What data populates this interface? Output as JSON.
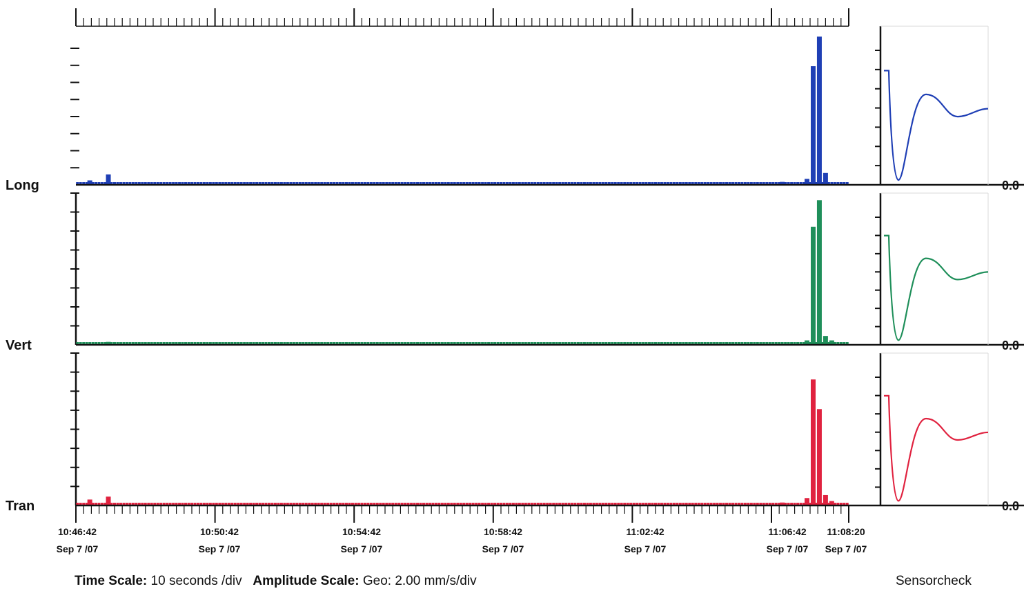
{
  "chart_data": {
    "type": "bar",
    "channels": [
      {
        "name": "Long",
        "color": "#1f3fb5",
        "zero_label": "0.0",
        "peaks": [
          {
            "t": 4,
            "v": 0.03
          },
          {
            "t": 10,
            "v": 0.07
          },
          {
            "t": 228,
            "v": 0.02
          },
          {
            "t": 236,
            "v": 0.04
          },
          {
            "t": 238,
            "v": 0.8
          },
          {
            "t": 240,
            "v": 1.0
          },
          {
            "t": 242,
            "v": 0.08
          }
        ]
      },
      {
        "name": "Vert",
        "color": "#1f8f5a",
        "zero_label": "0.0",
        "peaks": [
          {
            "t": 10,
            "v": 0.02
          },
          {
            "t": 236,
            "v": 0.03
          },
          {
            "t": 238,
            "v": 0.8
          },
          {
            "t": 240,
            "v": 0.98
          },
          {
            "t": 242,
            "v": 0.06
          },
          {
            "t": 244,
            "v": 0.03
          }
        ]
      },
      {
        "name": "Tran",
        "color": "#e0223f",
        "zero_label": "0.0",
        "peaks": [
          {
            "t": 4,
            "v": 0.04
          },
          {
            "t": 10,
            "v": 0.06
          },
          {
            "t": 228,
            "v": 0.02
          },
          {
            "t": 236,
            "v": 0.05
          },
          {
            "t": 238,
            "v": 0.85
          },
          {
            "t": 240,
            "v": 0.65
          },
          {
            "t": 242,
            "v": 0.07
          },
          {
            "t": 244,
            "v": 0.03
          }
        ]
      }
    ],
    "time_ticks": [
      {
        "time": "10:46:42",
        "date": "Sep 7 /07"
      },
      {
        "time": "10:50:42",
        "date": "Sep 7 /07"
      },
      {
        "time": "10:54:42",
        "date": "Sep 7 /07"
      },
      {
        "time": "10:58:42",
        "date": "Sep 7 /07"
      },
      {
        "time": "11:02:42",
        "date": "Sep 7 /07"
      },
      {
        "time": "11:06:42",
        "date": "Sep 7 /07"
      },
      {
        "time": "11:08:20",
        "date": "Sep 7 /07"
      }
    ],
    "sensorcheck_label": "Sensorcheck"
  },
  "footer": {
    "time_scale_label": "Time Scale:",
    "time_scale_value": "10 seconds /div",
    "amplitude_scale_label": "Amplitude Scale:",
    "amplitude_scale_value": "Geo: 2.00 mm/s/div"
  }
}
